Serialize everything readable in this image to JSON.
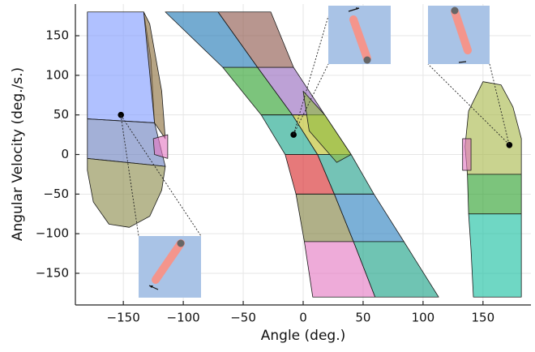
{
  "chart_data": {
    "type": "region",
    "x_label": "Angle (deg.)",
    "y_label": "Angular Velocity (deg./s.)",
    "xlim": [
      -190,
      190
    ],
    "ylim": [
      -190,
      190
    ],
    "xticks": [
      {
        "value": -150,
        "label": "−150"
      },
      {
        "value": -100,
        "label": "−100"
      },
      {
        "value": -50,
        "label": "−50"
      },
      0,
      50,
      100,
      150
    ],
    "yticks": [
      {
        "value": -150,
        "label": "−150"
      },
      {
        "value": -100,
        "label": "−100"
      },
      {
        "value": -50,
        "label": "−50"
      },
      0,
      50,
      100,
      150
    ],
    "grid": true,
    "regions": [
      {
        "color": "#7f9bff",
        "x": [
          -180,
          -133,
          -127,
          -124,
          -180
        ],
        "y": [
          180,
          180,
          120,
          40,
          45
        ]
      },
      {
        "color": "#6b7fbf",
        "x": [
          -180,
          -124,
          -115,
          -180
        ],
        "y": [
          45,
          40,
          -15,
          -5
        ]
      },
      {
        "color": "#8a8a4a",
        "x": [
          -180,
          -115,
          -118,
          -128,
          -145,
          -162,
          -175,
          -180
        ],
        "y": [
          -5,
          -15,
          -45,
          -78,
          -92,
          -88,
          -60,
          -20
        ]
      },
      {
        "color": "#8b6d3a",
        "x": [
          -133,
          -128,
          -118,
          -115,
          -124
        ],
        "y": [
          180,
          165,
          80,
          20,
          40
        ]
      },
      {
        "color": "#e377c2",
        "x": [
          -125,
          -113,
          -113,
          -124
        ],
        "y": [
          20,
          25,
          -5,
          0
        ]
      },
      {
        "color": "#1f77b4",
        "x": [
          -115,
          -71,
          -38,
          -67
        ],
        "y": [
          180,
          180,
          110,
          110
        ]
      },
      {
        "color": "#8c564b",
        "x": [
          -71,
          -27,
          -8,
          -38
        ],
        "y": [
          180,
          180,
          110,
          110
        ]
      },
      {
        "color": "#2ca02c",
        "x": [
          -67,
          -38,
          -9,
          -35
        ],
        "y": [
          110,
          110,
          50,
          50
        ]
      },
      {
        "color": "#9467bd",
        "x": [
          -38,
          -8,
          18,
          -9
        ],
        "y": [
          110,
          110,
          50,
          50
        ]
      },
      {
        "color": "#17a589",
        "x": [
          -35,
          -9,
          12,
          -15
        ],
        "y": [
          50,
          50,
          0,
          0
        ]
      },
      {
        "color": "#bcbd22",
        "x": [
          -9,
          18,
          40,
          12
        ],
        "y": [
          50,
          50,
          0,
          0
        ]
      },
      {
        "color": "#d62728",
        "x": [
          -15,
          12,
          26,
          -6
        ],
        "y": [
          0,
          0,
          -50,
          -50
        ]
      },
      {
        "color": "#1f9e89",
        "x": [
          12,
          40,
          59,
          26
        ],
        "y": [
          0,
          0,
          -50,
          -50
        ]
      },
      {
        "color": "#7f7f3f",
        "x": [
          -6,
          26,
          42,
          1
        ],
        "y": [
          -50,
          -50,
          -110,
          -110
        ]
      },
      {
        "color": "#2a7fbf",
        "x": [
          26,
          59,
          84,
          42
        ],
        "y": [
          -50,
          -50,
          -110,
          -110
        ]
      },
      {
        "color": "#e377c2",
        "x": [
          1,
          42,
          60,
          8
        ],
        "y": [
          -110,
          -110,
          -180,
          -180
        ]
      },
      {
        "color": "#16a085",
        "x": [
          42,
          84,
          113,
          60
        ],
        "y": [
          -110,
          -110,
          -180,
          -180
        ]
      },
      {
        "color": "#8fbc3f",
        "x": [
          0,
          18,
          40,
          28,
          5
        ],
        "y": [
          80,
          50,
          0,
          -10,
          30
        ]
      },
      {
        "color": "#a8b84a",
        "x": [
          150,
          165,
          175,
          182,
          182,
          137,
          135,
          138
        ],
        "y": [
          92,
          88,
          60,
          20,
          -25,
          -25,
          10,
          55
        ]
      },
      {
        "color": "#2ca02c",
        "x": [
          137,
          182,
          182,
          138
        ],
        "y": [
          -25,
          -25,
          -75,
          -75
        ]
      },
      {
        "color": "#17bfa0",
        "x": [
          138,
          182,
          182,
          142,
          140
        ],
        "y": [
          -75,
          -75,
          -180,
          -180,
          -120
        ]
      },
      {
        "color": "#e377c2",
        "x": [
          133,
          140,
          140,
          133
        ],
        "y": [
          20,
          20,
          -20,
          -20
        ]
      }
    ],
    "points": {
      "color": "#000000",
      "x": [
        -152,
        -8,
        172
      ],
      "y": [
        50,
        25,
        12
      ]
    }
  }
}
